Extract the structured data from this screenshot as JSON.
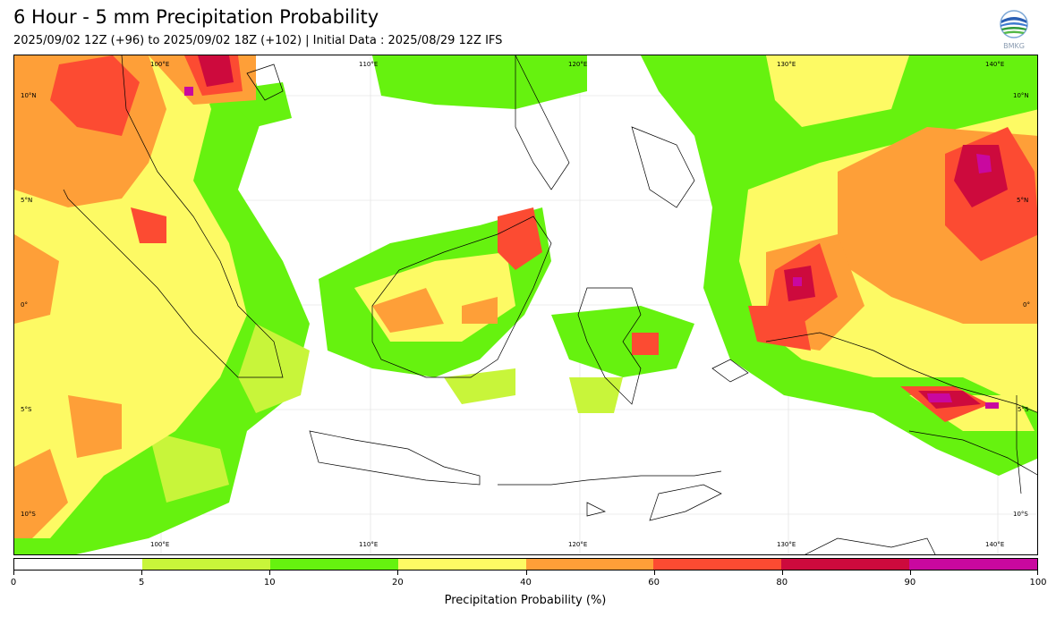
{
  "header": {
    "title": "6 Hour - 5 mm Precipitation Probability",
    "subtitle": "2025/09/02 12Z (+96) to 2025/09/02 18Z (+102) | Initial Data : 2025/08/29 12Z IFS",
    "logo_text": "BMKG"
  },
  "map": {
    "lon_top": [
      "100°E",
      "110°E",
      "120°E",
      "130°E",
      "140°E"
    ],
    "lon_bottom": [
      "100°E",
      "110°E",
      "120°E",
      "130°E",
      "140°E"
    ],
    "lat_left": [
      "10°N",
      "5°N",
      "0°",
      "5°S",
      "10°S"
    ],
    "lat_right": [
      "10°N",
      "5°N",
      "0°",
      "5°S",
      "10°S"
    ]
  },
  "colorbar": {
    "title": "Precipitation Probability (%)",
    "ticks": [
      "0",
      "5",
      "10",
      "20",
      "40",
      "60",
      "80",
      "90",
      "100"
    ],
    "colors": [
      "#ffffff",
      "#c8f53a",
      "#66f20f",
      "#fdfa64",
      "#fe9f38",
      "#fc4b32",
      "#cd0a3d",
      "#c9089f"
    ]
  }
}
